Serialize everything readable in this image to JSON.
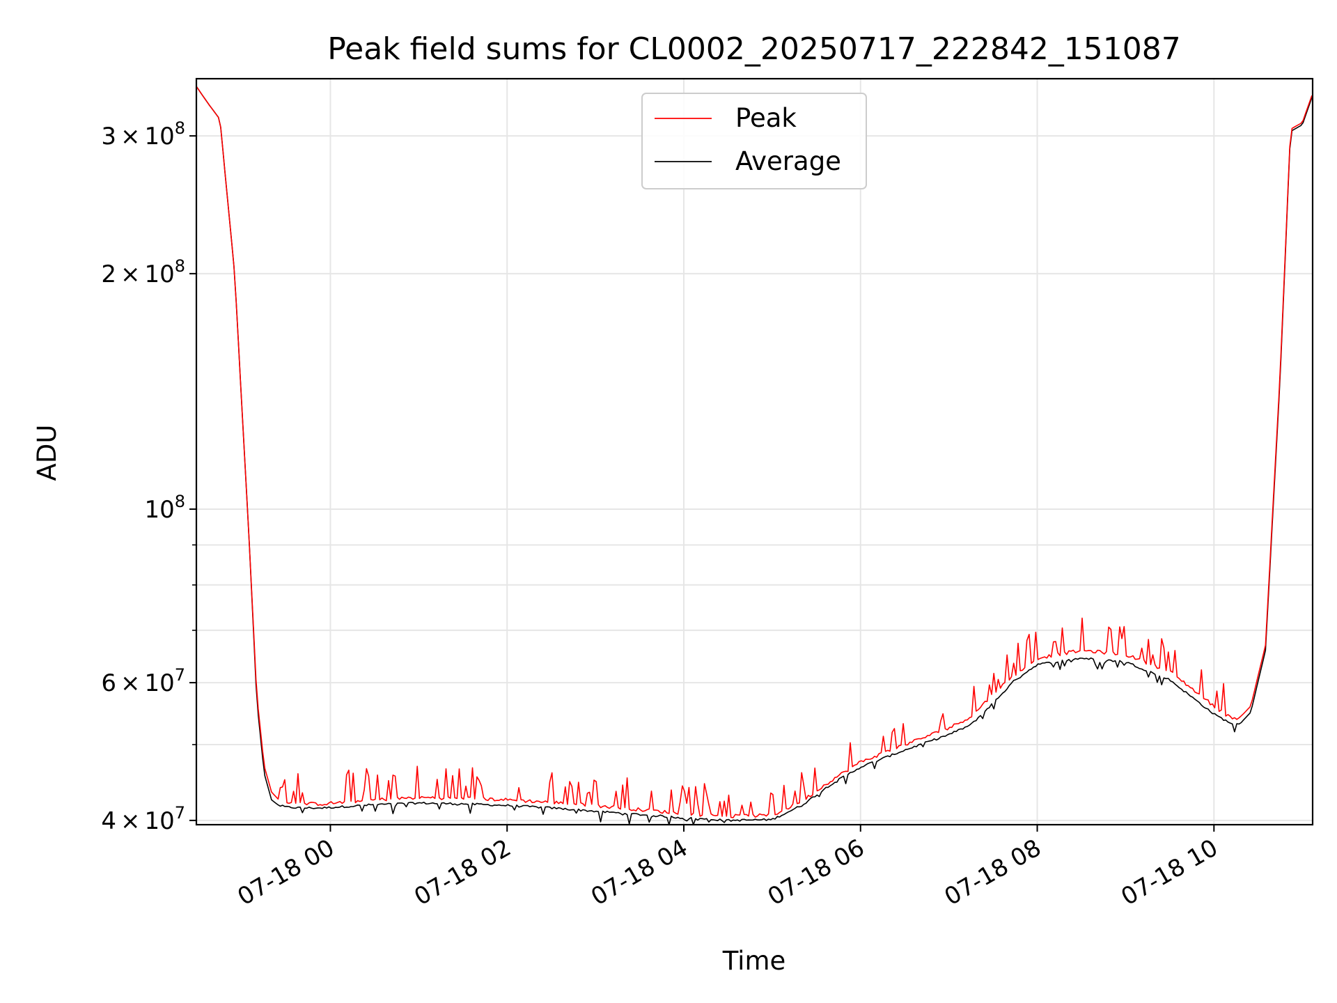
{
  "chart_data": {
    "type": "line",
    "title": "Peak field sums for CL0002_20250717_222842_151087",
    "xlabel": "Time",
    "ylabel": "ADU",
    "y_scale": "log",
    "ylim": [
      39500000,
      355000000
    ],
    "xlim": [
      "07-17 22:29",
      "07-18 11:07"
    ],
    "grid": true,
    "legend_position": "top-center",
    "x_ticks": [
      "07-18 00",
      "07-18 02",
      "07-18 04",
      "07-18 06",
      "07-18 08",
      "07-18 10"
    ],
    "x_tick_times": [
      "07-18 00:00",
      "07-18 02:00",
      "07-18 04:00",
      "07-18 06:00",
      "07-18 08:00",
      "07-18 10:00"
    ],
    "y_ticks": [
      {
        "value": 40000000,
        "mantissa": "4",
        "exponent": "7"
      },
      {
        "value": 60000000,
        "mantissa": "6",
        "exponent": "7"
      },
      {
        "value": 100000000,
        "mantissa": "",
        "exponent": "8"
      },
      {
        "value": 200000000,
        "mantissa": "2",
        "exponent": "8"
      },
      {
        "value": 300000000,
        "mantissa": "3",
        "exponent": "8"
      }
    ],
    "y_minor_ticks": [
      50000000,
      70000000,
      80000000,
      90000000
    ],
    "series": [
      {
        "name": "Peak",
        "color": "#ff0000",
        "spiky": true,
        "x": [
          "07-17 22:29",
          "07-17 22:37",
          "07-17 22:45",
          "07-17 22:55",
          "07-17 23:05",
          "07-17 23:10",
          "07-17 23:15",
          "07-17 23:20",
          "07-17 23:25",
          "07-17 23:30",
          "07-17 23:40",
          "07-17 23:55",
          "07-18 00:30",
          "07-18 01:00",
          "07-18 01:30",
          "07-18 02:00",
          "07-18 02:30",
          "07-18 03:00",
          "07-18 03:30",
          "07-18 04:00",
          "07-18 04:30",
          "07-18 05:00",
          "07-18 05:20",
          "07-18 05:40",
          "07-18 06:00",
          "07-18 06:30",
          "07-18 07:00",
          "07-18 07:15",
          "07-18 07:30",
          "07-18 07:45",
          "07-18 08:00",
          "07-18 08:30",
          "07-18 09:00",
          "07-18 09:30",
          "07-18 09:45",
          "07-18 10:00",
          "07-18 10:10",
          "07-18 10:17",
          "07-18 10:25",
          "07-18 10:35",
          "07-18 10:45",
          "07-18 10:52",
          "07-18 11:00",
          "07-18 11:07"
        ],
        "y": [
          347000000,
          330000000,
          315000000,
          200000000,
          90000000,
          58000000,
          47000000,
          43500000,
          42500000,
          42200000,
          42000000,
          42000000,
          42500000,
          42800000,
          42700000,
          42500000,
          42200000,
          41800000,
          41300000,
          40800000,
          40500000,
          40600000,
          42300000,
          45000000,
          47500000,
          50000000,
          52500000,
          54300000,
          58000000,
          61500000,
          64500000,
          66000000,
          65200000,
          62000000,
          59000000,
          56000000,
          54300000,
          54000000,
          56000000,
          67000000,
          150000000,
          306000000,
          312000000,
          340000000
        ]
      },
      {
        "name": "Average",
        "color": "#000000",
        "spiky": false,
        "x": [
          "07-17 22:29",
          "07-17 22:37",
          "07-17 22:45",
          "07-17 22:55",
          "07-17 23:05",
          "07-17 23:10",
          "07-17 23:15",
          "07-17 23:20",
          "07-17 23:25",
          "07-17 23:30",
          "07-17 23:40",
          "07-17 23:55",
          "07-18 00:30",
          "07-18 01:00",
          "07-18 01:30",
          "07-18 02:00",
          "07-18 02:30",
          "07-18 03:00",
          "07-18 03:30",
          "07-18 04:00",
          "07-18 04:30",
          "07-18 05:00",
          "07-18 05:20",
          "07-18 05:40",
          "07-18 06:00",
          "07-18 06:30",
          "07-18 07:00",
          "07-18 07:15",
          "07-18 07:30",
          "07-18 07:45",
          "07-18 08:00",
          "07-18 08:30",
          "07-18 09:00",
          "07-18 09:30",
          "07-18 09:45",
          "07-18 10:00",
          "07-18 10:10",
          "07-18 10:17",
          "07-18 10:25",
          "07-18 10:35",
          "07-18 10:45",
          "07-18 10:52",
          "07-18 11:00",
          "07-18 11:07"
        ],
        "y": [
          347000000,
          330000000,
          315000000,
          200000000,
          90000000,
          57000000,
          46000000,
          42500000,
          41800000,
          41600000,
          41500000,
          41500000,
          41900000,
          42100000,
          42000000,
          41800000,
          41500000,
          41100000,
          40700000,
          40300000,
          40000000,
          40100000,
          41800000,
          44500000,
          46800000,
          49200000,
          51500000,
          53000000,
          56500000,
          60500000,
          63300000,
          64500000,
          63800000,
          60500000,
          57500000,
          54700000,
          53400000,
          53000000,
          55000000,
          66000000,
          148000000,
          304000000,
          310000000,
          338000000
        ]
      }
    ]
  }
}
